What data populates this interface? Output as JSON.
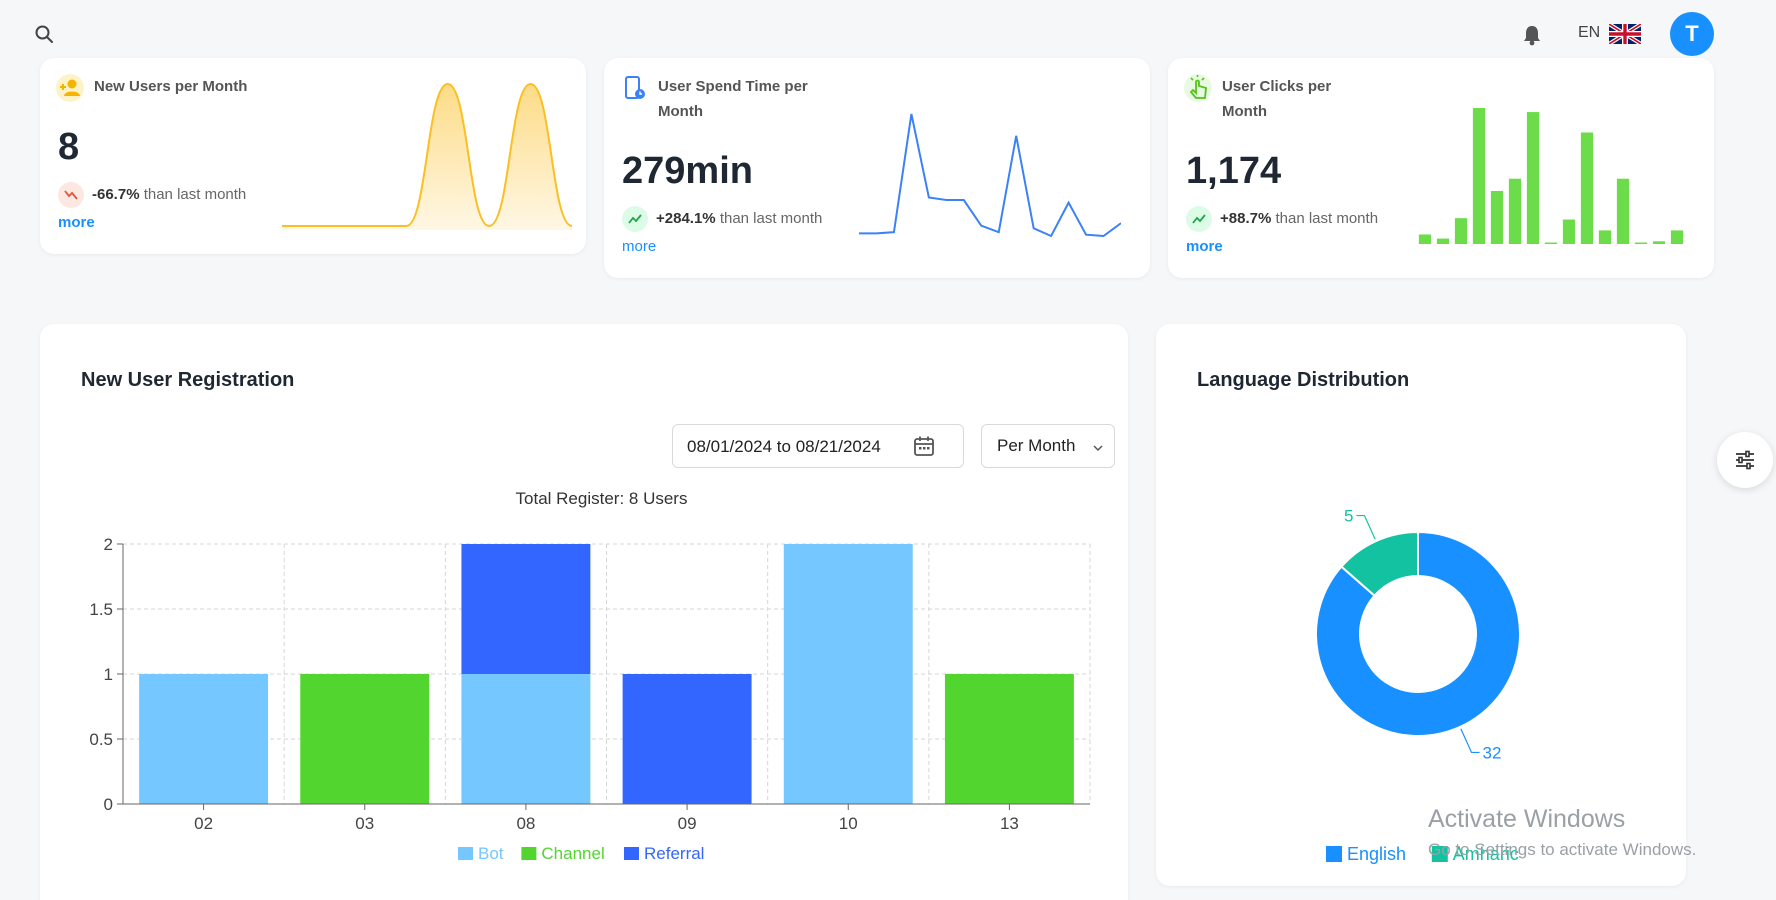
{
  "header": {
    "language": "EN",
    "avatar_initial": "T"
  },
  "stats": [
    {
      "title_line1": "New Users per Month",
      "title_line2": "",
      "value": "8",
      "change": "-66.7%",
      "change_suffix": "than last month",
      "direction": "down",
      "more": "more",
      "chart": {
        "type": "area",
        "color": "#fbbf24",
        "values": [
          0,
          0,
          0,
          0,
          1,
          0,
          1,
          0
        ]
      }
    },
    {
      "title_line1": "User Spend Time per",
      "title_line2": "Month",
      "value": "279min",
      "change": "+284.1%",
      "change_suffix": "than last month",
      "direction": "up",
      "more": "more",
      "chart": {
        "type": "line",
        "color": "#3b82f6",
        "values": [
          2,
          2,
          3,
          95,
          30,
          28,
          28,
          8,
          3,
          78,
          6,
          0,
          26,
          1,
          0,
          10
        ]
      }
    },
    {
      "title_line1": "User Clicks per",
      "title_line2": "Month",
      "value": "1,174",
      "change": "+88.7%",
      "change_suffix": "than last month",
      "direction": "up",
      "more": "more",
      "chart": {
        "type": "bar",
        "color": "#6ddc4a",
        "values": [
          7,
          4,
          19,
          100,
          39,
          48,
          97,
          0,
          18,
          82,
          10,
          48,
          1,
          2,
          10
        ]
      }
    }
  ],
  "registration": {
    "title": "New User Registration",
    "date_range": "08/01/2024 to 08/21/2024",
    "period": "Per Month"
  },
  "language": {
    "title": "Language Distribution"
  },
  "watermark": {
    "line1": "Activate Windows",
    "line2": "Go to Settings to activate Windows."
  },
  "chart_data": [
    {
      "type": "bar",
      "stacked": true,
      "title": "Total Register: 8 Users",
      "categories": [
        "02",
        "03",
        "08",
        "09",
        "10",
        "13"
      ],
      "series": [
        {
          "name": "Bot",
          "color": "#75c7ff",
          "values": [
            1,
            0,
            1,
            0,
            2,
            0
          ]
        },
        {
          "name": "Channel",
          "color": "#52d62f",
          "values": [
            0,
            1,
            0,
            0,
            0,
            1
          ]
        },
        {
          "name": "Referral",
          "color": "#3366ff",
          "values": [
            0,
            0,
            1,
            1,
            0,
            0
          ]
        }
      ],
      "ylim": [
        0,
        2
      ],
      "yticks": [
        "0",
        "0.5",
        "1",
        "1.5",
        "2"
      ],
      "grid": true,
      "legend_position": "bottom"
    },
    {
      "type": "pie",
      "donut": true,
      "labels": [
        "English",
        "Amharic"
      ],
      "values": [
        32,
        5
      ],
      "colors": [
        "#1890ff",
        "#13c2a0"
      ],
      "legend_position": "bottom"
    }
  ]
}
